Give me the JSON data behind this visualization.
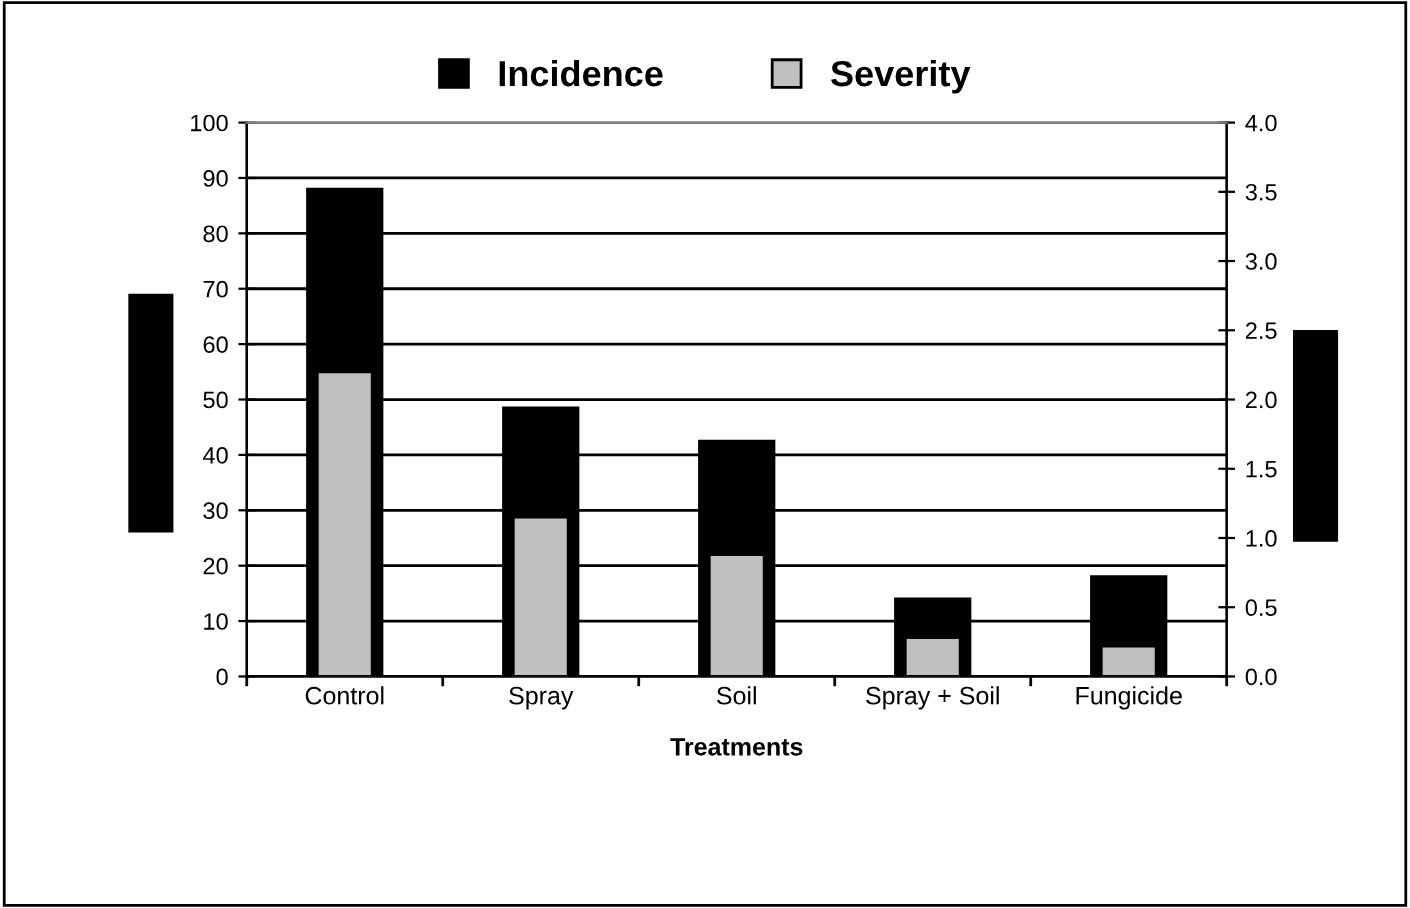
{
  "chart_data": {
    "type": "bar",
    "xlabel": "Treatments",
    "categories": [
      "Control",
      "Spray",
      "Soil",
      "Spray + Soil",
      "Fungicide"
    ],
    "series": [
      {
        "name": "Incidence",
        "color": "#000000",
        "values": [
          88,
          48.5,
          42.5,
          14,
          18
        ]
      },
      {
        "name": "Severity",
        "color": "#c0c0c0",
        "axis": "y2",
        "values": [
          2.2,
          1.15,
          0.88,
          0.28,
          0.22
        ]
      }
    ],
    "ylim": [
      0,
      100
    ],
    "yticks": [
      0,
      10,
      20,
      30,
      40,
      50,
      60,
      70,
      80,
      90,
      100
    ],
    "y2lim": [
      0,
      4
    ],
    "y2ticks": [
      {
        "value": 0,
        "label": "0.0"
      },
      {
        "value": 0.5,
        "label": "0.5"
      },
      {
        "value": 1,
        "label": "1.0"
      },
      {
        "value": 1.5,
        "label": "1.5"
      },
      {
        "value": 2,
        "label": "2.0"
      },
      {
        "value": 2.5,
        "label": "2.5"
      },
      {
        "value": 3,
        "label": "3.0"
      },
      {
        "value": 3.5,
        "label": "3.5"
      },
      {
        "value": 4,
        "label": "4.0"
      }
    ],
    "grid": "y",
    "legend": "top"
  }
}
